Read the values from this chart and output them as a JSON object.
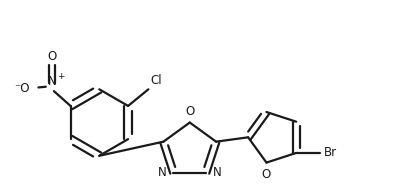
{
  "bg_color": "#ffffff",
  "line_color": "#1a1a1a",
  "line_width": 1.6,
  "font_size": 8.5,
  "figsize": [
    3.98,
    1.86
  ],
  "dpi": 100,
  "xlim": [
    -0.5,
    9.5
  ],
  "ylim": [
    -1.5,
    3.5
  ]
}
